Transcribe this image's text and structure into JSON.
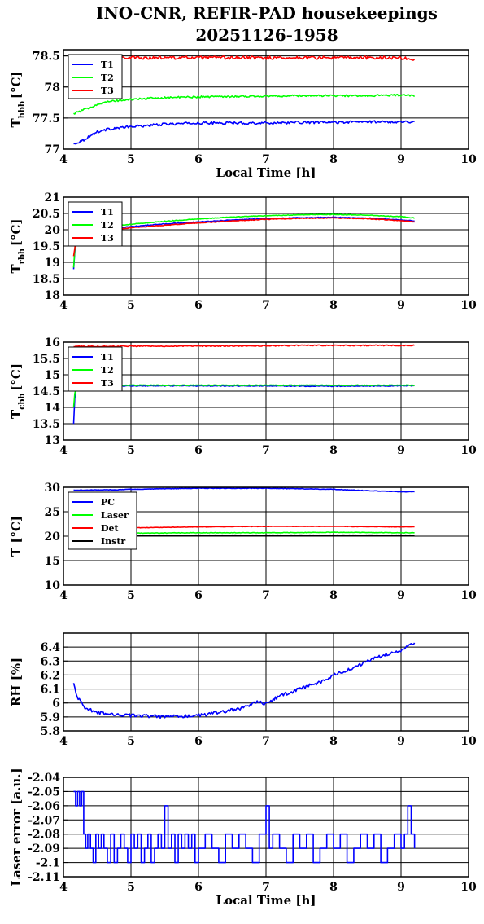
{
  "figure": {
    "title_line1": "INO-CNR, REFIR-PAD housekeepings",
    "title_line2": "20251126-1958"
  },
  "chart_data": [
    {
      "type": "line",
      "title": "",
      "xlabel": "Local Time [h]",
      "ylabel": "T",
      "ylabel_sub": "hbb",
      "ylabel_unit": "[°C]",
      "xlim": [
        4,
        10
      ],
      "ylim": [
        77,
        78.6
      ],
      "xticks": [
        4,
        5,
        6,
        7,
        8,
        9,
        10
      ],
      "yticks": [
        77,
        77.5,
        78,
        78.5
      ],
      "ytick_labels": [
        "77",
        "77.5",
        "78",
        "78.5"
      ],
      "grid": true,
      "legend": "top-left",
      "series": [
        {
          "name": "T1",
          "color": "#0000ff",
          "x": [
            4.15,
            4.3,
            4.5,
            4.7,
            5.0,
            5.5,
            6.0,
            6.5,
            7.0,
            7.5,
            8.0,
            8.5,
            9.0,
            9.2
          ],
          "y": [
            77.08,
            77.15,
            77.28,
            77.33,
            77.36,
            77.4,
            77.42,
            77.42,
            77.42,
            77.43,
            77.43,
            77.44,
            77.44,
            77.44
          ],
          "noise": 0.02
        },
        {
          "name": "T2",
          "color": "#00ff00",
          "x": [
            4.15,
            4.3,
            4.5,
            4.7,
            5.0,
            5.5,
            6.0,
            6.5,
            7.0,
            7.5,
            8.0,
            8.5,
            9.0,
            9.2
          ],
          "y": [
            77.57,
            77.63,
            77.72,
            77.77,
            77.8,
            77.83,
            77.84,
            77.85,
            77.85,
            77.86,
            77.86,
            77.86,
            77.87,
            77.86
          ],
          "noise": 0.015
        },
        {
          "name": "T3",
          "color": "#ff0000",
          "x": [
            4.15,
            4.5,
            5.0,
            5.5,
            6.0,
            6.5,
            7.0,
            7.5,
            8.0,
            8.5,
            9.0,
            9.2
          ],
          "y": [
            78.46,
            78.46,
            78.47,
            78.47,
            78.47,
            78.47,
            78.47,
            78.47,
            78.47,
            78.47,
            78.47,
            78.44
          ],
          "noise": 0.025
        }
      ]
    },
    {
      "type": "line",
      "title": "",
      "xlabel": "",
      "ylabel": "T",
      "ylabel_sub": "rbb",
      "ylabel_unit": "[°C]",
      "xlim": [
        4,
        10
      ],
      "ylim": [
        18,
        21
      ],
      "xticks": [
        4,
        5,
        6,
        7,
        8,
        9,
        10
      ],
      "yticks": [
        18,
        18.5,
        19,
        19.5,
        20,
        20.5,
        21
      ],
      "ytick_labels": [
        "18",
        "18.5",
        "19",
        "19.5",
        "20",
        "20.5",
        "21"
      ],
      "grid": true,
      "legend": "top-left",
      "series": [
        {
          "name": "T1",
          "color": "#0000ff",
          "x": [
            4.15,
            4.18,
            4.2,
            4.4,
            4.8,
            5.0,
            5.5,
            6.0,
            6.5,
            7.0,
            7.5,
            8.0,
            8.5,
            9.0,
            9.2
          ],
          "y": [
            18.8,
            19.7,
            19.95,
            20.0,
            20.05,
            20.1,
            20.18,
            20.24,
            20.3,
            20.34,
            20.37,
            20.38,
            20.36,
            20.3,
            20.27
          ],
          "noise": 0.01
        },
        {
          "name": "T2",
          "color": "#00ff00",
          "x": [
            4.15,
            4.18,
            4.2,
            4.4,
            4.8,
            5.0,
            5.5,
            6.0,
            6.5,
            7.0,
            7.5,
            8.0,
            8.5,
            9.0,
            9.2
          ],
          "y": [
            18.85,
            19.75,
            20.0,
            20.08,
            20.12,
            20.17,
            20.26,
            20.33,
            20.39,
            20.43,
            20.46,
            20.47,
            20.45,
            20.4,
            20.36
          ],
          "noise": 0.01
        },
        {
          "name": "T3",
          "color": "#ff0000",
          "x": [
            4.15,
            4.18,
            4.2,
            4.4,
            4.8,
            5.0,
            5.5,
            6.0,
            6.5,
            7.0,
            7.5,
            8.0,
            8.5,
            9.0,
            9.2
          ],
          "y": [
            19.2,
            19.6,
            19.95,
            19.98,
            20.02,
            20.06,
            20.14,
            20.21,
            20.27,
            20.32,
            20.35,
            20.36,
            20.34,
            20.28,
            20.24
          ],
          "noise": 0.01
        }
      ]
    },
    {
      "type": "line",
      "title": "",
      "xlabel": "",
      "ylabel": "T",
      "ylabel_sub": "cbb",
      "ylabel_unit": "[°C]",
      "xlim": [
        4,
        10
      ],
      "ylim": [
        13,
        16
      ],
      "xticks": [
        4,
        5,
        6,
        7,
        8,
        9,
        10
      ],
      "yticks": [
        13,
        13.5,
        14,
        14.5,
        15,
        15.5,
        16
      ],
      "ytick_labels": [
        "13",
        "13.5",
        "14",
        "14.5",
        "15",
        "15.5",
        "16"
      ],
      "grid": true,
      "legend": "top-left",
      "series": [
        {
          "name": "T1",
          "color": "#0000ff",
          "x": [
            4.15,
            4.17,
            4.2,
            4.4,
            4.8,
            5.0,
            6.0,
            7.0,
            8.0,
            9.0,
            9.2
          ],
          "y": [
            13.5,
            14.4,
            14.62,
            14.64,
            14.65,
            14.66,
            14.66,
            14.66,
            14.65,
            14.66,
            14.67
          ],
          "noise": 0.012
        },
        {
          "name": "T2",
          "color": "#00ff00",
          "x": [
            4.15,
            4.17,
            4.2,
            4.4,
            4.8,
            5.0,
            6.0,
            7.0,
            8.0,
            9.0,
            9.2
          ],
          "y": [
            14.0,
            14.5,
            14.66,
            14.68,
            14.68,
            14.68,
            14.68,
            14.68,
            14.68,
            14.68,
            14.68
          ],
          "noise": 0.012
        },
        {
          "name": "T3",
          "color": "#ff0000",
          "x": [
            4.15,
            4.5,
            5.0,
            6.0,
            7.0,
            7.5,
            8.0,
            8.5,
            9.0,
            9.2
          ],
          "y": [
            15.87,
            15.87,
            15.88,
            15.88,
            15.89,
            15.9,
            15.9,
            15.9,
            15.9,
            15.9
          ],
          "noise": 0.015
        }
      ]
    },
    {
      "type": "line",
      "title": "",
      "xlabel": "",
      "ylabel": "T [°C]",
      "ylabel_sub": "",
      "ylabel_unit": "",
      "xlim": [
        4,
        10
      ],
      "ylim": [
        10,
        30
      ],
      "xticks": [
        4,
        5,
        6,
        7,
        8,
        9,
        10
      ],
      "yticks": [
        10,
        15,
        20,
        25,
        30
      ],
      "ytick_labels": [
        "10",
        "15",
        "20",
        "25",
        "30"
      ],
      "grid": true,
      "legend": "top-left",
      "series": [
        {
          "name": "PC",
          "color": "#0000ff",
          "x": [
            4.15,
            4.8,
            5.0,
            5.5,
            6.0,
            6.5,
            7.0,
            7.5,
            8.0,
            8.5,
            9.0,
            9.2
          ],
          "y": [
            29.4,
            29.5,
            29.6,
            29.7,
            29.8,
            29.8,
            29.8,
            29.7,
            29.6,
            29.3,
            29.1,
            29.1
          ],
          "noise": 0.05
        },
        {
          "name": "Laser",
          "color": "#00ff00",
          "x": [
            4.8,
            5.0,
            6.0,
            7.0,
            8.0,
            9.0,
            9.2
          ],
          "y": [
            20.5,
            20.6,
            20.7,
            20.7,
            20.8,
            20.7,
            20.7
          ],
          "noise": 0.05
        },
        {
          "name": "Det",
          "color": "#ff0000",
          "x": [
            4.8,
            5.0,
            6.0,
            7.0,
            8.0,
            9.0,
            9.2
          ],
          "y": [
            21.6,
            21.7,
            21.9,
            22.0,
            22.0,
            21.9,
            21.9
          ],
          "noise": 0.04
        },
        {
          "name": "Instr",
          "color": "#000000",
          "x": [
            4.8,
            5.0,
            6.0,
            7.0,
            8.0,
            9.0,
            9.2
          ],
          "y": [
            20.1,
            20.1,
            20.2,
            20.2,
            20.2,
            20.2,
            20.2
          ],
          "noise": 0.02
        }
      ]
    },
    {
      "type": "line",
      "title": "",
      "xlabel": "",
      "ylabel": "RH [%]",
      "ylabel_sub": "",
      "ylabel_unit": "",
      "xlim": [
        4,
        10
      ],
      "ylim": [
        5.8,
        6.5
      ],
      "xticks": [
        4,
        5,
        6,
        7,
        8,
        9,
        10
      ],
      "yticks": [
        5.8,
        5.9,
        6.0,
        6.1,
        6.2,
        6.3,
        6.4
      ],
      "ytick_labels": [
        "5.8",
        "5.9",
        "6",
        "6.1",
        "6.2",
        "6.3",
        "6.4"
      ],
      "grid": true,
      "legend": "none",
      "series": [
        {
          "name": "",
          "color": "#0000ff",
          "x": [
            4.15,
            4.2,
            4.3,
            4.5,
            4.8,
            5.0,
            5.5,
            6.0,
            6.3,
            6.5,
            6.7,
            6.85,
            7.0,
            7.2,
            7.5,
            7.8,
            8.0,
            8.3,
            8.5,
            8.8,
            9.0,
            9.2
          ],
          "y": [
            6.15,
            6.05,
            5.97,
            5.93,
            5.92,
            5.91,
            5.9,
            5.91,
            5.93,
            5.95,
            5.97,
            6.01,
            5.99,
            6.05,
            6.1,
            6.15,
            6.2,
            6.25,
            6.3,
            6.35,
            6.38,
            6.43
          ],
          "noise": 0.012
        }
      ]
    },
    {
      "type": "line",
      "title": "",
      "xlabel": "Local Time [h]",
      "ylabel": "Laser error [a.u.]",
      "ylabel_sub": "",
      "ylabel_unit": "",
      "xlim": [
        4,
        10
      ],
      "ylim": [
        -2.11,
        -2.04
      ],
      "xticks": [
        4,
        5,
        6,
        7,
        8,
        9,
        10
      ],
      "yticks": [
        -2.11,
        -2.1,
        -2.09,
        -2.08,
        -2.07,
        -2.06,
        -2.05,
        -2.04
      ],
      "ytick_labels": [
        "-2.11",
        "-2.1",
        "-2.09",
        "-2.08",
        "-2.07",
        "-2.06",
        "-2.05",
        "-2.04"
      ],
      "grid": true,
      "legend": "none",
      "series": [
        {
          "name": "",
          "color": "#0000ff",
          "x": [
            4.15,
            4.18,
            4.21,
            4.24,
            4.27,
            4.3,
            4.33,
            4.36,
            4.4,
            4.44,
            4.48,
            4.52,
            4.56,
            4.6,
            4.65,
            4.7,
            4.75,
            4.8,
            4.85,
            4.9,
            4.95,
            5.0,
            5.05,
            5.1,
            5.15,
            5.2,
            5.25,
            5.3,
            5.35,
            5.4,
            5.45,
            5.5,
            5.55,
            5.6,
            5.65,
            5.7,
            5.75,
            5.8,
            5.85,
            5.9,
            5.95,
            6.0,
            6.1,
            6.2,
            6.3,
            6.4,
            6.5,
            6.6,
            6.7,
            6.8,
            6.9,
            7.0,
            7.05,
            7.1,
            7.2,
            7.3,
            7.4,
            7.5,
            7.6,
            7.7,
            7.8,
            7.9,
            8.0,
            8.1,
            8.2,
            8.3,
            8.4,
            8.5,
            8.6,
            8.7,
            8.8,
            8.9,
            9.0,
            9.05,
            9.1,
            9.15,
            9.2
          ],
          "y": [
            -2.05,
            -2.06,
            -2.05,
            -2.06,
            -2.05,
            -2.08,
            -2.09,
            -2.08,
            -2.09,
            -2.1,
            -2.08,
            -2.09,
            -2.08,
            -2.09,
            -2.1,
            -2.08,
            -2.1,
            -2.09,
            -2.08,
            -2.09,
            -2.1,
            -2.08,
            -2.09,
            -2.08,
            -2.1,
            -2.09,
            -2.08,
            -2.1,
            -2.09,
            -2.08,
            -2.09,
            -2.06,
            -2.09,
            -2.08,
            -2.1,
            -2.08,
            -2.09,
            -2.08,
            -2.09,
            -2.08,
            -2.1,
            -2.09,
            -2.08,
            -2.09,
            -2.1,
            -2.08,
            -2.09,
            -2.08,
            -2.09,
            -2.1,
            -2.08,
            -2.06,
            -2.09,
            -2.08,
            -2.09,
            -2.1,
            -2.08,
            -2.09,
            -2.08,
            -2.1,
            -2.09,
            -2.08,
            -2.09,
            -2.08,
            -2.1,
            -2.09,
            -2.08,
            -2.09,
            -2.08,
            -2.1,
            -2.09,
            -2.08,
            -2.09,
            -2.08,
            -2.06,
            -2.08,
            -2.09
          ],
          "noise": 0
        }
      ]
    }
  ]
}
